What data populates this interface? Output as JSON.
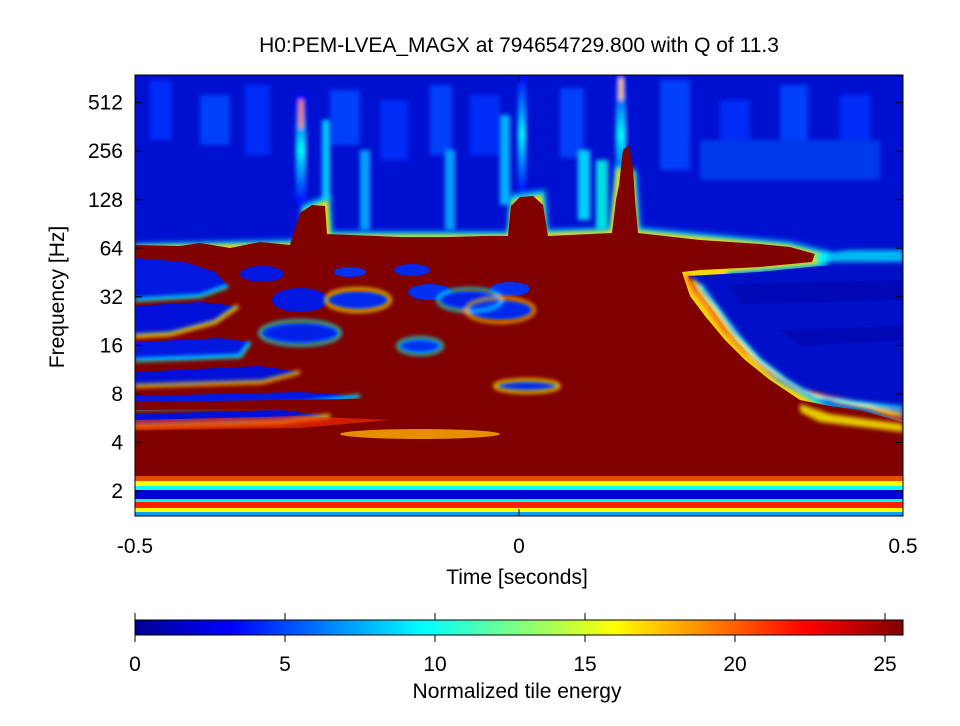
{
  "chart_data": {
    "type": "heatmap",
    "title": "H0:PEM-LVEA_MAGX at 794654729.800 with Q of 11.3",
    "xlabel": "Time [seconds]",
    "ylabel": "Frequency [Hz]",
    "xlim": [
      -0.5,
      0.5
    ],
    "ylim": [
      1.4,
      760
    ],
    "yscale": "log2",
    "x_ticks": [
      {
        "value": -0.5,
        "label": "-0.5"
      },
      {
        "value": 0,
        "label": "0"
      },
      {
        "value": 0.5,
        "label": "0.5"
      }
    ],
    "y_ticks": [
      {
        "value": 2,
        "label": "2"
      },
      {
        "value": 4,
        "label": "4"
      },
      {
        "value": 8,
        "label": "8"
      },
      {
        "value": 16,
        "label": "16"
      },
      {
        "value": 32,
        "label": "32"
      },
      {
        "value": 64,
        "label": "64"
      },
      {
        "value": 128,
        "label": "128"
      },
      {
        "value": 256,
        "label": "256"
      },
      {
        "value": 512,
        "label": "512"
      }
    ],
    "colorbar": {
      "label": "Normalized tile energy",
      "colormap": "jet",
      "range": [
        0,
        25.6
      ],
      "ticks": [
        {
          "value": 0,
          "label": "0"
        },
        {
          "value": 5,
          "label": "5"
        },
        {
          "value": 10,
          "label": "10"
        },
        {
          "value": 15,
          "label": "15"
        },
        {
          "value": 20,
          "label": "20"
        },
        {
          "value": 25,
          "label": "25"
        }
      ]
    },
    "colors": {
      "saturated": "#800000",
      "background": "#00008f"
    }
  }
}
